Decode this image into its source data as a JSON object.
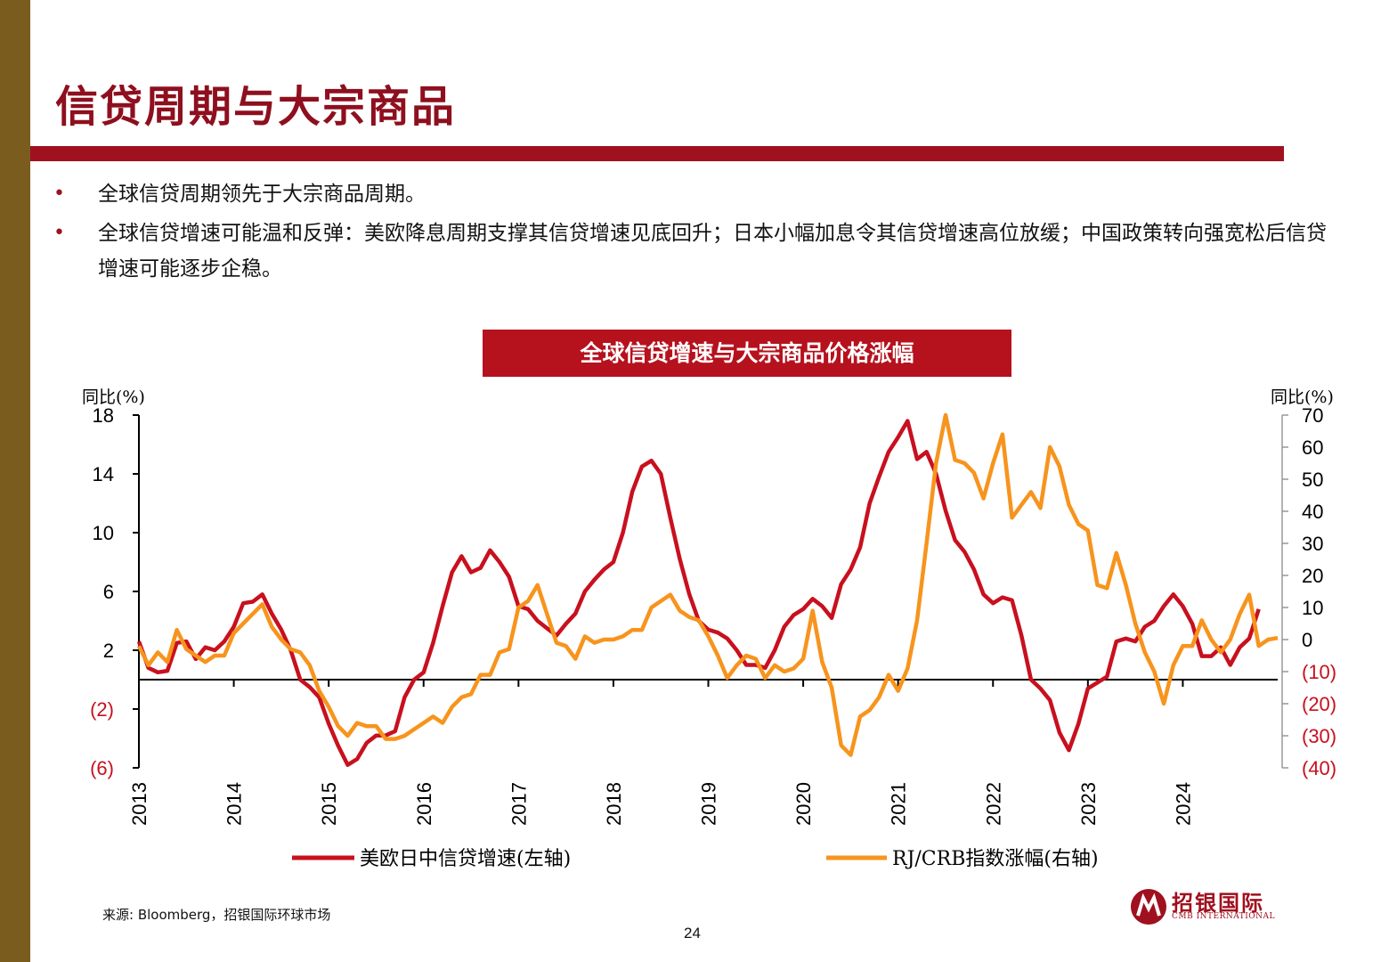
{
  "page": {
    "title": "信贷周期与大宗商品",
    "bullets": [
      "全球信贷周期领先于大宗商品周期。",
      "全球信贷增速可能温和反弹：美欧降息周期支撑其信贷增速见底回升；日本小幅加息令其信贷增速高位放缓；中国政策转向强宽松后信贷增速可能逐步企稳。"
    ],
    "source": "来源: Bloomberg，招银国际环球市场",
    "page_number": "24",
    "logo_text": "招银国际",
    "logo_sub": "CMB INTERNATIONAL"
  },
  "colors": {
    "accent": "#a0101e",
    "band": "#7a5c1e",
    "credit": "#c8101e",
    "commodity": "#f7941d"
  },
  "chart_data": {
    "type": "line",
    "title": "全球信贷增速与大宗商品价格涨幅",
    "left_axis": {
      "label": "同比(%)",
      "range": [
        -6,
        18
      ],
      "ticks": [
        18,
        14,
        10,
        6,
        2,
        -2,
        -6
      ],
      "tick_labels": [
        "18",
        "14",
        "10",
        "6",
        "2",
        "(2)",
        "(6)"
      ]
    },
    "right_axis": {
      "label": "同比(%)",
      "range": [
        -40,
        70
      ],
      "ticks": [
        70,
        60,
        50,
        40,
        30,
        20,
        10,
        0,
        -10,
        -20,
        -30,
        -40
      ],
      "tick_labels": [
        "70",
        "60",
        "50",
        "40",
        "30",
        "20",
        "10",
        "0",
        "(10)",
        "(20)",
        "(30)",
        "(40)"
      ]
    },
    "x_ticks": [
      "2013",
      "2014",
      "2015",
      "2016",
      "2017",
      "2018",
      "2019",
      "2020",
      "2021",
      "2022",
      "2023",
      "2024"
    ],
    "x_range": [
      2013.0,
      2024.8
    ],
    "legend_position": "bottom",
    "series": [
      {
        "name": "美欧日中信贷增速(左轴)",
        "axis": "left",
        "points": [
          [
            2013.0,
            2.6
          ],
          [
            2013.1,
            0.8
          ],
          [
            2013.2,
            0.5
          ],
          [
            2013.3,
            0.6
          ],
          [
            2013.4,
            2.5
          ],
          [
            2013.5,
            2.6
          ],
          [
            2013.6,
            1.4
          ],
          [
            2013.7,
            2.2
          ],
          [
            2013.8,
            2.0
          ],
          [
            2013.9,
            2.6
          ],
          [
            2014.0,
            3.6
          ],
          [
            2014.1,
            5.2
          ],
          [
            2014.2,
            5.3
          ],
          [
            2014.3,
            5.8
          ],
          [
            2014.4,
            4.5
          ],
          [
            2014.5,
            3.4
          ],
          [
            2014.6,
            2.0
          ],
          [
            2014.7,
            0.0
          ],
          [
            2014.8,
            -0.5
          ],
          [
            2014.9,
            -1.2
          ],
          [
            2015.0,
            -3.0
          ],
          [
            2015.1,
            -4.5
          ],
          [
            2015.2,
            -5.8
          ],
          [
            2015.3,
            -5.4
          ],
          [
            2015.4,
            -4.3
          ],
          [
            2015.5,
            -3.8
          ],
          [
            2015.6,
            -3.8
          ],
          [
            2015.7,
            -3.5
          ],
          [
            2015.8,
            -1.2
          ],
          [
            2015.9,
            0.0
          ],
          [
            2016.0,
            0.5
          ],
          [
            2016.1,
            2.5
          ],
          [
            2016.2,
            5.0
          ],
          [
            2016.3,
            7.3
          ],
          [
            2016.4,
            8.4
          ],
          [
            2016.5,
            7.3
          ],
          [
            2016.6,
            7.6
          ],
          [
            2016.7,
            8.8
          ],
          [
            2016.8,
            8.0
          ],
          [
            2016.9,
            7.0
          ],
          [
            2017.0,
            5.0
          ],
          [
            2017.1,
            4.8
          ],
          [
            2017.2,
            4.0
          ],
          [
            2017.3,
            3.5
          ],
          [
            2017.4,
            3.0
          ],
          [
            2017.5,
            3.8
          ],
          [
            2017.6,
            4.5
          ],
          [
            2017.7,
            6.0
          ],
          [
            2017.8,
            6.8
          ],
          [
            2017.9,
            7.5
          ],
          [
            2018.0,
            8.0
          ],
          [
            2018.1,
            10.0
          ],
          [
            2018.2,
            12.8
          ],
          [
            2018.3,
            14.5
          ],
          [
            2018.4,
            14.9
          ],
          [
            2018.5,
            14.0
          ],
          [
            2018.6,
            11.0
          ],
          [
            2018.7,
            8.2
          ],
          [
            2018.8,
            5.8
          ],
          [
            2018.9,
            4.0
          ],
          [
            2019.0,
            3.4
          ],
          [
            2019.1,
            3.2
          ],
          [
            2019.2,
            2.8
          ],
          [
            2019.3,
            2.0
          ],
          [
            2019.4,
            1.0
          ],
          [
            2019.5,
            1.0
          ],
          [
            2019.6,
            0.8
          ],
          [
            2019.7,
            2.0
          ],
          [
            2019.8,
            3.6
          ],
          [
            2019.9,
            4.4
          ],
          [
            2020.0,
            4.8
          ],
          [
            2020.1,
            5.5
          ],
          [
            2020.2,
            5.0
          ],
          [
            2020.3,
            4.2
          ],
          [
            2020.4,
            6.5
          ],
          [
            2020.5,
            7.5
          ],
          [
            2020.6,
            9.0
          ],
          [
            2020.7,
            12.0
          ],
          [
            2020.8,
            13.8
          ],
          [
            2020.9,
            15.5
          ],
          [
            2021.0,
            16.5
          ],
          [
            2021.1,
            17.6
          ],
          [
            2021.2,
            15.0
          ],
          [
            2021.3,
            15.5
          ],
          [
            2021.4,
            14.0
          ],
          [
            2021.5,
            11.5
          ],
          [
            2021.6,
            9.5
          ],
          [
            2021.7,
            8.7
          ],
          [
            2021.8,
            7.5
          ],
          [
            2021.9,
            5.8
          ],
          [
            2022.0,
            5.2
          ],
          [
            2022.1,
            5.6
          ],
          [
            2022.2,
            5.4
          ],
          [
            2022.3,
            3.0
          ],
          [
            2022.4,
            0.0
          ],
          [
            2022.5,
            -0.6
          ],
          [
            2022.6,
            -1.4
          ],
          [
            2022.7,
            -3.6
          ],
          [
            2022.8,
            -4.8
          ],
          [
            2022.9,
            -3.0
          ],
          [
            2023.0,
            -0.6
          ],
          [
            2023.1,
            -0.2
          ],
          [
            2023.2,
            0.2
          ],
          [
            2023.3,
            2.6
          ],
          [
            2023.4,
            2.8
          ],
          [
            2023.5,
            2.6
          ],
          [
            2023.6,
            3.6
          ],
          [
            2023.7,
            4.0
          ],
          [
            2023.8,
            5.0
          ],
          [
            2023.9,
            5.8
          ],
          [
            2024.0,
            5.0
          ],
          [
            2024.1,
            3.8
          ],
          [
            2024.2,
            1.6
          ],
          [
            2024.3,
            1.6
          ],
          [
            2024.4,
            2.2
          ],
          [
            2024.5,
            1.0
          ],
          [
            2024.6,
            2.2
          ],
          [
            2024.7,
            2.8
          ],
          [
            2024.8,
            4.8
          ]
        ]
      },
      {
        "name": "RJ/CRB指数涨幅(右轴)",
        "axis": "right",
        "points": [
          [
            2013.0,
            -2
          ],
          [
            2013.1,
            -8
          ],
          [
            2013.2,
            -4
          ],
          [
            2013.3,
            -7
          ],
          [
            2013.4,
            3
          ],
          [
            2013.5,
            -3
          ],
          [
            2013.6,
            -5
          ],
          [
            2013.7,
            -7
          ],
          [
            2013.8,
            -5
          ],
          [
            2013.9,
            -5
          ],
          [
            2014.0,
            2
          ],
          [
            2014.1,
            5
          ],
          [
            2014.2,
            8
          ],
          [
            2014.3,
            11
          ],
          [
            2014.4,
            4
          ],
          [
            2014.5,
            0
          ],
          [
            2014.6,
            -3
          ],
          [
            2014.7,
            -4
          ],
          [
            2014.8,
            -8
          ],
          [
            2014.9,
            -16
          ],
          [
            2015.0,
            -21
          ],
          [
            2015.1,
            -27
          ],
          [
            2015.2,
            -30
          ],
          [
            2015.3,
            -26
          ],
          [
            2015.4,
            -27
          ],
          [
            2015.5,
            -27
          ],
          [
            2015.6,
            -31
          ],
          [
            2015.7,
            -31
          ],
          [
            2015.8,
            -30
          ],
          [
            2015.9,
            -28
          ],
          [
            2016.0,
            -26
          ],
          [
            2016.1,
            -24
          ],
          [
            2016.2,
            -26
          ],
          [
            2016.3,
            -21
          ],
          [
            2016.4,
            -18
          ],
          [
            2016.5,
            -17
          ],
          [
            2016.6,
            -11
          ],
          [
            2016.7,
            -11
          ],
          [
            2016.8,
            -4
          ],
          [
            2016.9,
            -3
          ],
          [
            2017.0,
            10
          ],
          [
            2017.1,
            12
          ],
          [
            2017.2,
            17
          ],
          [
            2017.3,
            8
          ],
          [
            2017.4,
            -1
          ],
          [
            2017.5,
            -2
          ],
          [
            2017.6,
            -6
          ],
          [
            2017.7,
            1
          ],
          [
            2017.8,
            -1
          ],
          [
            2017.9,
            0
          ],
          [
            2018.0,
            0
          ],
          [
            2018.1,
            1
          ],
          [
            2018.2,
            3
          ],
          [
            2018.3,
            3
          ],
          [
            2018.4,
            10
          ],
          [
            2018.5,
            12
          ],
          [
            2018.6,
            14
          ],
          [
            2018.7,
            9
          ],
          [
            2018.8,
            7
          ],
          [
            2018.9,
            6
          ],
          [
            2019.0,
            1
          ],
          [
            2019.1,
            -5
          ],
          [
            2019.2,
            -12
          ],
          [
            2019.3,
            -8
          ],
          [
            2019.4,
            -5
          ],
          [
            2019.5,
            -6
          ],
          [
            2019.6,
            -12
          ],
          [
            2019.7,
            -8
          ],
          [
            2019.8,
            -10
          ],
          [
            2019.9,
            -9
          ],
          [
            2020.0,
            -6
          ],
          [
            2020.1,
            9
          ],
          [
            2020.2,
            -7
          ],
          [
            2020.3,
            -15
          ],
          [
            2020.4,
            -33
          ],
          [
            2020.5,
            -36
          ],
          [
            2020.6,
            -24
          ],
          [
            2020.7,
            -22
          ],
          [
            2020.8,
            -18
          ],
          [
            2020.9,
            -11
          ],
          [
            2021.0,
            -16
          ],
          [
            2021.1,
            -9
          ],
          [
            2021.2,
            6
          ],
          [
            2021.3,
            30
          ],
          [
            2021.4,
            55
          ],
          [
            2021.5,
            70
          ],
          [
            2021.6,
            56
          ],
          [
            2021.7,
            55
          ],
          [
            2021.8,
            52
          ],
          [
            2021.9,
            44
          ],
          [
            2022.0,
            55
          ],
          [
            2022.1,
            64
          ],
          [
            2022.2,
            38
          ],
          [
            2022.3,
            42
          ],
          [
            2022.4,
            46
          ],
          [
            2022.5,
            41
          ],
          [
            2022.6,
            60
          ],
          [
            2022.7,
            54
          ],
          [
            2022.8,
            42
          ],
          [
            2022.9,
            36
          ],
          [
            2023.0,
            34
          ],
          [
            2023.1,
            17
          ],
          [
            2023.2,
            16
          ],
          [
            2023.3,
            27
          ],
          [
            2023.4,
            17
          ],
          [
            2023.5,
            5
          ],
          [
            2023.6,
            -4
          ],
          [
            2023.7,
            -10
          ],
          [
            2023.8,
            -20
          ],
          [
            2023.9,
            -8
          ],
          [
            2024.0,
            -2
          ],
          [
            2024.1,
            -2
          ],
          [
            2024.2,
            6
          ],
          [
            2024.3,
            0
          ],
          [
            2024.4,
            -4
          ],
          [
            2024.5,
            0
          ],
          [
            2024.6,
            8
          ],
          [
            2024.7,
            14
          ],
          [
            2024.8,
            -2
          ],
          [
            2024.9,
            0
          ],
          [
            2025.0,
            0.5
          ]
        ]
      }
    ]
  }
}
